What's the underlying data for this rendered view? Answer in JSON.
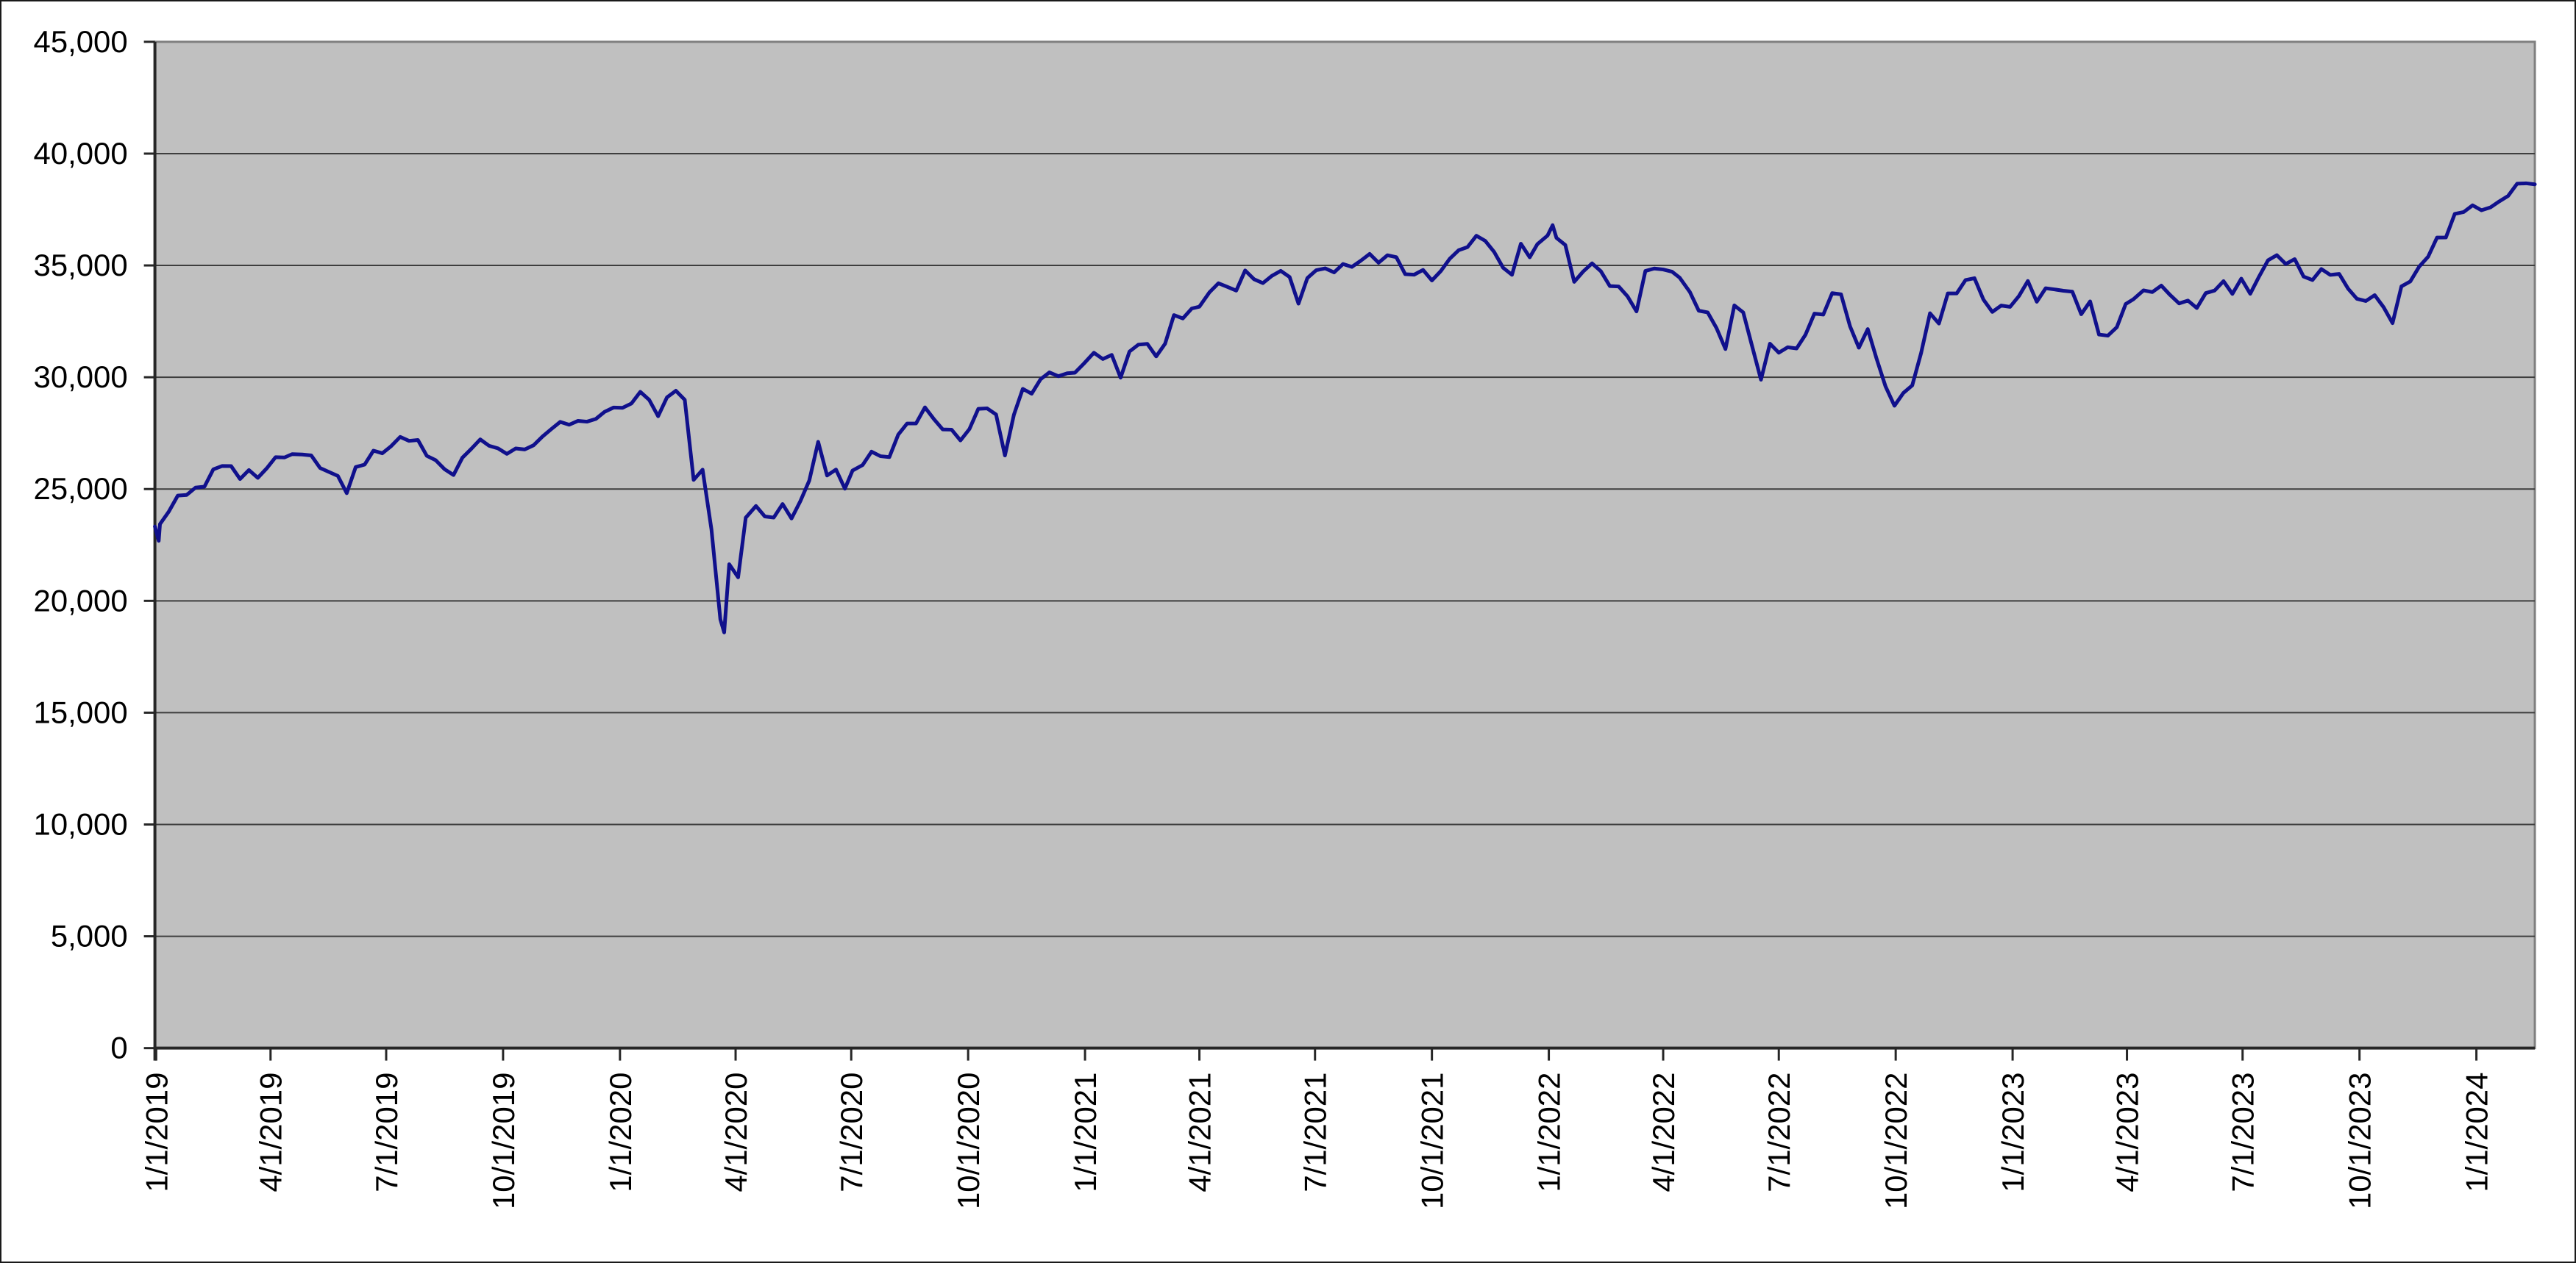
{
  "chart_data": {
    "type": "line",
    "title": "",
    "xlabel": "",
    "ylabel": "",
    "grid": true,
    "legend_visible": false,
    "y_axis": {
      "min": 0,
      "max": 45000,
      "step": 5000,
      "tick_labels": [
        "0",
        "5,000",
        "10,000",
        "15,000",
        "20,000",
        "25,000",
        "30,000",
        "35,000",
        "40,000",
        "45,000"
      ]
    },
    "x_tick_labels": [
      "1/1/2019",
      "4/1/2019",
      "7/1/2019",
      "10/1/2019",
      "1/1/2020",
      "4/1/2020",
      "7/1/2020",
      "10/1/2020",
      "1/1/2021",
      "4/1/2021",
      "7/1/2021",
      "10/1/2021",
      "1/1/2022",
      "4/1/2022",
      "7/1/2022",
      "10/1/2022",
      "1/1/2023",
      "4/1/2023",
      "7/1/2023",
      "10/1/2023",
      "1/1/2024"
    ],
    "colors": {
      "line": "#10108c",
      "plot_bg": "#c0c0c0",
      "gridline": "#3e3e3e",
      "axis": "#262626",
      "plot_border": "#7f7f7f",
      "text": "#000000",
      "chart_border": "#1a1a1a",
      "background": "#ffffff"
    },
    "series": [
      {
        "name": "",
        "points": [
          [
            "12/31/2018",
            23327
          ],
          [
            "1/3/2019",
            22686
          ],
          [
            "1/4/2019",
            23433
          ],
          [
            "1/11/2019",
            23996
          ],
          [
            "1/18/2019",
            24706
          ],
          [
            "1/25/2019",
            24737
          ],
          [
            "2/1/2019",
            25064
          ],
          [
            "2/8/2019",
            25106
          ],
          [
            "2/15/2019",
            25883
          ],
          [
            "2/22/2019",
            26032
          ],
          [
            "3/1/2019",
            26026
          ],
          [
            "3/8/2019",
            25450
          ],
          [
            "3/15/2019",
            25849
          ],
          [
            "3/22/2019",
            25502
          ],
          [
            "3/29/2019",
            25929
          ],
          [
            "4/5/2019",
            26425
          ],
          [
            "4/12/2019",
            26412
          ],
          [
            "4/18/2019",
            26560
          ],
          [
            "4/26/2019",
            26543
          ],
          [
            "5/3/2019",
            26505
          ],
          [
            "5/10/2019",
            25942
          ],
          [
            "5/17/2019",
            25764
          ],
          [
            "5/24/2019",
            25586
          ],
          [
            "5/31/2019",
            24815
          ],
          [
            "6/7/2019",
            25984
          ],
          [
            "6/14/2019",
            26090
          ],
          [
            "6/21/2019",
            26719
          ],
          [
            "6/28/2019",
            26600
          ],
          [
            "7/5/2019",
            26922
          ],
          [
            "7/12/2019",
            27332
          ],
          [
            "7/19/2019",
            27154
          ],
          [
            "7/26/2019",
            27192
          ],
          [
            "8/2/2019",
            26485
          ],
          [
            "8/9/2019",
            26287
          ],
          [
            "8/16/2019",
            25886
          ],
          [
            "8/23/2019",
            25629
          ],
          [
            "8/30/2019",
            26403
          ],
          [
            "9/6/2019",
            26797
          ],
          [
            "9/13/2019",
            27219
          ],
          [
            "9/20/2019",
            26935
          ],
          [
            "9/27/2019",
            26820
          ],
          [
            "10/4/2019",
            26574
          ],
          [
            "10/11/2019",
            26817
          ],
          [
            "10/18/2019",
            26770
          ],
          [
            "10/25/2019",
            26958
          ],
          [
            "11/1/2019",
            27347
          ],
          [
            "11/8/2019",
            27681
          ],
          [
            "11/15/2019",
            28005
          ],
          [
            "11/22/2019",
            27876
          ],
          [
            "11/29/2019",
            28051
          ],
          [
            "12/6/2019",
            28015
          ],
          [
            "12/13/2019",
            28135
          ],
          [
            "12/20/2019",
            28455
          ],
          [
            "12/27/2019",
            28645
          ],
          [
            "1/3/2020",
            28635
          ],
          [
            "1/10/2020",
            28824
          ],
          [
            "1/17/2020",
            29348
          ],
          [
            "1/24/2020",
            28990
          ],
          [
            "1/31/2020",
            28256
          ],
          [
            "2/7/2020",
            29103
          ],
          [
            "2/14/2020",
            29398
          ],
          [
            "2/21/2020",
            28992
          ],
          [
            "2/28/2020",
            25409
          ],
          [
            "3/6/2020",
            25865
          ],
          [
            "3/13/2020",
            23186
          ],
          [
            "3/20/2020",
            19174
          ],
          [
            "3/23/2020",
            18592
          ],
          [
            "3/27/2020",
            21637
          ],
          [
            "4/3/2020",
            21053
          ],
          [
            "4/9/2020",
            23719
          ],
          [
            "4/17/2020",
            24242
          ],
          [
            "4/24/2020",
            23775
          ],
          [
            "5/1/2020",
            23724
          ],
          [
            "5/8/2020",
            24331
          ],
          [
            "5/15/2020",
            23685
          ],
          [
            "5/22/2020",
            24465
          ],
          [
            "5/29/2020",
            25383
          ],
          [
            "6/5/2020",
            27111
          ],
          [
            "6/12/2020",
            25606
          ],
          [
            "6/19/2020",
            25871
          ],
          [
            "6/26/2020",
            25016
          ],
          [
            "7/2/2020",
            25827
          ],
          [
            "7/10/2020",
            26075
          ],
          [
            "7/17/2020",
            26672
          ],
          [
            "7/24/2020",
            26470
          ],
          [
            "7/31/2020",
            26428
          ],
          [
            "8/7/2020",
            27433
          ],
          [
            "8/14/2020",
            27931
          ],
          [
            "8/21/2020",
            27930
          ],
          [
            "8/28/2020",
            28654
          ],
          [
            "9/4/2020",
            28133
          ],
          [
            "9/11/2020",
            27666
          ],
          [
            "9/18/2020",
            27657
          ],
          [
            "9/25/2020",
            27174
          ],
          [
            "10/2/2020",
            27683
          ],
          [
            "10/9/2020",
            28587
          ],
          [
            "10/16/2020",
            28606
          ],
          [
            "10/23/2020",
            28336
          ],
          [
            "10/30/2020",
            26502
          ],
          [
            "11/6/2020",
            28323
          ],
          [
            "11/13/2020",
            29480
          ],
          [
            "11/20/2020",
            29263
          ],
          [
            "11/27/2020",
            29910
          ],
          [
            "12/4/2020",
            30218
          ],
          [
            "12/11/2020",
            30046
          ],
          [
            "12/18/2020",
            30179
          ],
          [
            "12/24/2020",
            30200
          ],
          [
            "12/31/2020",
            30606
          ],
          [
            "1/8/2021",
            31098
          ],
          [
            "1/15/2021",
            30814
          ],
          [
            "1/22/2021",
            30997
          ],
          [
            "1/29/2021",
            29983
          ],
          [
            "2/5/2021",
            31148
          ],
          [
            "2/12/2021",
            31458
          ],
          [
            "2/19/2021",
            31494
          ],
          [
            "2/26/2021",
            30932
          ],
          [
            "3/5/2021",
            31496
          ],
          [
            "3/12/2021",
            32779
          ],
          [
            "3/19/2021",
            32628
          ],
          [
            "3/26/2021",
            33073
          ],
          [
            "4/1/2021",
            33153
          ],
          [
            "4/9/2021",
            33801
          ],
          [
            "4/16/2021",
            34201
          ],
          [
            "4/23/2021",
            34043
          ],
          [
            "4/30/2021",
            33875
          ],
          [
            "5/7/2021",
            34778
          ],
          [
            "5/14/2021",
            34382
          ],
          [
            "5/21/2021",
            34208
          ],
          [
            "5/28/2021",
            34529
          ],
          [
            "6/4/2021",
            34756
          ],
          [
            "6/11/2021",
            34480
          ],
          [
            "6/18/2021",
            33290
          ],
          [
            "6/25/2021",
            34434
          ],
          [
            "7/2/2021",
            34786
          ],
          [
            "7/9/2021",
            34870
          ],
          [
            "7/16/2021",
            34688
          ],
          [
            "7/23/2021",
            35062
          ],
          [
            "7/30/2021",
            34935
          ],
          [
            "8/6/2021",
            35209
          ],
          [
            "8/13/2021",
            35515
          ],
          [
            "8/20/2021",
            35120
          ],
          [
            "8/27/2021",
            35456
          ],
          [
            "9/3/2021",
            35369
          ],
          [
            "9/10/2021",
            34608
          ],
          [
            "9/17/2021",
            34585
          ],
          [
            "9/24/2021",
            34798
          ],
          [
            "10/1/2021",
            34326
          ],
          [
            "10/8/2021",
            34746
          ],
          [
            "10/15/2021",
            35295
          ],
          [
            "10/22/2021",
            35677
          ],
          [
            "10/29/2021",
            35820
          ],
          [
            "11/5/2021",
            36328
          ],
          [
            "11/12/2021",
            36100
          ],
          [
            "11/19/2021",
            35602
          ],
          [
            "11/26/2021",
            34899
          ],
          [
            "12/3/2021",
            34580
          ],
          [
            "12/10/2021",
            35971
          ],
          [
            "12/17/2021",
            35365
          ],
          [
            "12/23/2021",
            35950
          ],
          [
            "12/31/2021",
            36338
          ],
          [
            "1/4/2022",
            36800
          ],
          [
            "1/7/2022",
            36232
          ],
          [
            "1/14/2022",
            35912
          ],
          [
            "1/21/2022",
            34265
          ],
          [
            "1/28/2022",
            34725
          ],
          [
            "2/4/2022",
            35090
          ],
          [
            "2/11/2022",
            34738
          ],
          [
            "2/18/2022",
            34079
          ],
          [
            "2/25/2022",
            34059
          ],
          [
            "3/4/2022",
            33615
          ],
          [
            "3/11/2022",
            32944
          ],
          [
            "3/18/2022",
            34755
          ],
          [
            "3/25/2022",
            34861
          ],
          [
            "4/1/2022",
            34818
          ],
          [
            "4/8/2022",
            34721
          ],
          [
            "4/14/2022",
            34451
          ],
          [
            "4/22/2022",
            33811
          ],
          [
            "4/29/2022",
            32977
          ],
          [
            "5/6/2022",
            32899
          ],
          [
            "5/13/2022",
            32197
          ],
          [
            "5/20/2022",
            31262
          ],
          [
            "5/27/2022",
            33213
          ],
          [
            "6/3/2022",
            32900
          ],
          [
            "6/10/2022",
            31393
          ],
          [
            "6/17/2022",
            29889
          ],
          [
            "6/24/2022",
            31501
          ],
          [
            "7/1/2022",
            31097
          ],
          [
            "7/8/2022",
            31338
          ],
          [
            "7/15/2022",
            31288
          ],
          [
            "7/22/2022",
            31899
          ],
          [
            "7/29/2022",
            32845
          ],
          [
            "8/5/2022",
            32803
          ],
          [
            "8/12/2022",
            33761
          ],
          [
            "8/19/2022",
            33707
          ],
          [
            "8/26/2022",
            32283
          ],
          [
            "9/2/2022",
            31318
          ],
          [
            "9/9/2022",
            32152
          ],
          [
            "9/16/2022",
            30822
          ],
          [
            "9/23/2022",
            29590
          ],
          [
            "9/30/2022",
            28726
          ],
          [
            "10/7/2022",
            29297
          ],
          [
            "10/14/2022",
            29635
          ],
          [
            "10/21/2022",
            31083
          ],
          [
            "10/28/2022",
            32862
          ],
          [
            "11/4/2022",
            32403
          ],
          [
            "11/11/2022",
            33748
          ],
          [
            "11/18/2022",
            33746
          ],
          [
            "11/25/2022",
            34347
          ],
          [
            "12/2/2022",
            34430
          ],
          [
            "12/9/2022",
            33476
          ],
          [
            "12/16/2022",
            32920
          ],
          [
            "12/23/2022",
            33204
          ],
          [
            "12/30/2022",
            33147
          ],
          [
            "1/6/2023",
            33631
          ],
          [
            "1/13/2023",
            34303
          ],
          [
            "1/20/2023",
            33375
          ],
          [
            "1/27/2023",
            33978
          ],
          [
            "2/3/2023",
            33926
          ],
          [
            "2/10/2023",
            33869
          ],
          [
            "2/17/2023",
            33827
          ],
          [
            "2/24/2023",
            32817
          ],
          [
            "3/3/2023",
            33391
          ],
          [
            "3/10/2023",
            31910
          ],
          [
            "3/17/2023",
            31862
          ],
          [
            "3/24/2023",
            32238
          ],
          [
            "3/31/2023",
            33274
          ],
          [
            "4/6/2023",
            33485
          ],
          [
            "4/14/2023",
            33886
          ],
          [
            "4/21/2023",
            33809
          ],
          [
            "4/28/2023",
            34098
          ],
          [
            "5/5/2023",
            33674
          ],
          [
            "5/12/2023",
            33301
          ],
          [
            "5/19/2023",
            33427
          ],
          [
            "5/26/2023",
            33093
          ],
          [
            "6/2/2023",
            33763
          ],
          [
            "6/9/2023",
            33877
          ],
          [
            "6/16/2023",
            34299
          ],
          [
            "6/23/2023",
            33727
          ],
          [
            "6/30/2023",
            34408
          ],
          [
            "7/7/2023",
            33735
          ],
          [
            "7/14/2023",
            34509
          ],
          [
            "7/21/2023",
            35228
          ],
          [
            "7/28/2023",
            35459
          ],
          [
            "8/4/2023",
            35066
          ],
          [
            "8/11/2023",
            35281
          ],
          [
            "8/18/2023",
            34501
          ],
          [
            "8/25/2023",
            34347
          ],
          [
            "9/1/2023",
            34838
          ],
          [
            "9/8/2023",
            34577
          ],
          [
            "9/15/2023",
            34618
          ],
          [
            "9/22/2023",
            33964
          ],
          [
            "9/29/2023",
            33508
          ],
          [
            "10/6/2023",
            33408
          ],
          [
            "10/13/2023",
            33670
          ],
          [
            "10/20/2023",
            33127
          ],
          [
            "10/27/2023",
            32418
          ],
          [
            "11/3/2023",
            34061
          ],
          [
            "11/10/2023",
            34283
          ],
          [
            "11/17/2023",
            34947
          ],
          [
            "11/24/2023",
            35390
          ],
          [
            "12/1/2023",
            36245
          ],
          [
            "12/8/2023",
            36248
          ],
          [
            "12/15/2023",
            37305
          ],
          [
            "12/22/2023",
            37386
          ],
          [
            "12/29/2023",
            37690
          ],
          [
            "1/5/2024",
            37466
          ],
          [
            "1/12/2024",
            37593
          ],
          [
            "1/19/2024",
            37864
          ],
          [
            "1/26/2024",
            38109
          ],
          [
            "2/2/2024",
            38654
          ],
          [
            "2/9/2024",
            38672
          ],
          [
            "2/16/2024",
            38628
          ]
        ]
      }
    ]
  }
}
